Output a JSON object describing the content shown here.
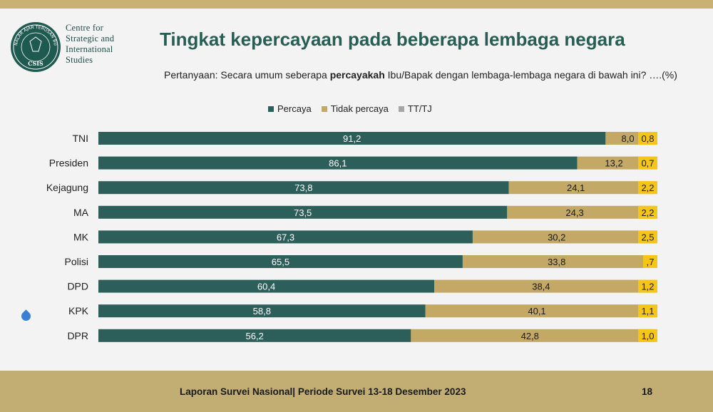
{
  "logo": {
    "ring_text": "NALAR AJAR TERUSAN BUDI",
    "seal_text": "CSIS",
    "lines": [
      "Centre for",
      "Strategic and",
      "International",
      "Studies"
    ]
  },
  "title": "Tingkat kepercayaan pada beberapa lembaga negara",
  "question": {
    "before": "Pertanyaan: Secara umum seberapa ",
    "bold": "percayakah",
    "after": " Ibu/Bapak dengan lembaga-lembaga negara di bawah ini? ….(%)"
  },
  "colors": {
    "percaya": "#2d5f5a",
    "tidak_percaya": "#c3a866",
    "tt_tj": "#f5c518",
    "tt_tj_legend": "#a6a6a6"
  },
  "chart_data": {
    "type": "bar",
    "orientation": "horizontal",
    "stacked": true,
    "categories": [
      "TNI",
      "Presiden",
      "Kejagung",
      "MA",
      "MK",
      "Polisi",
      "DPD",
      "KPK",
      "DPR"
    ],
    "series": [
      {
        "name": "Percaya",
        "values": [
          91.2,
          86.1,
          73.8,
          73.5,
          67.3,
          65.5,
          60.4,
          58.8,
          56.2
        ],
        "labels": [
          "91,2",
          "86,1",
          "73,8",
          "73,5",
          "67,3",
          "65,5",
          "60,4",
          "58,8",
          "56,2"
        ]
      },
      {
        "name": "Tidak percaya",
        "values": [
          8.0,
          13.2,
          24.1,
          24.3,
          30.2,
          33.8,
          38.4,
          40.1,
          42.8
        ],
        "labels": [
          "8,0",
          "13,2",
          "24,1",
          "24,3",
          "30,2",
          "33,8",
          "38,4",
          "40,1",
          "42,8"
        ]
      },
      {
        "name": "TT/TJ",
        "values": [
          0.8,
          0.7,
          2.2,
          2.2,
          2.5,
          0.7,
          1.2,
          1.1,
          1.0
        ],
        "labels": [
          "0,8",
          "0,7",
          "2,2",
          "2,2",
          "2,5",
          ",7",
          "1,2",
          "1,1",
          "1,0"
        ]
      }
    ],
    "xlim": [
      0,
      100
    ],
    "legend_position": "top",
    "grid": false
  },
  "footer": {
    "text": "Laporan Survei Nasional| Periode Survei 13-18 Desember 2023",
    "page": "18"
  }
}
